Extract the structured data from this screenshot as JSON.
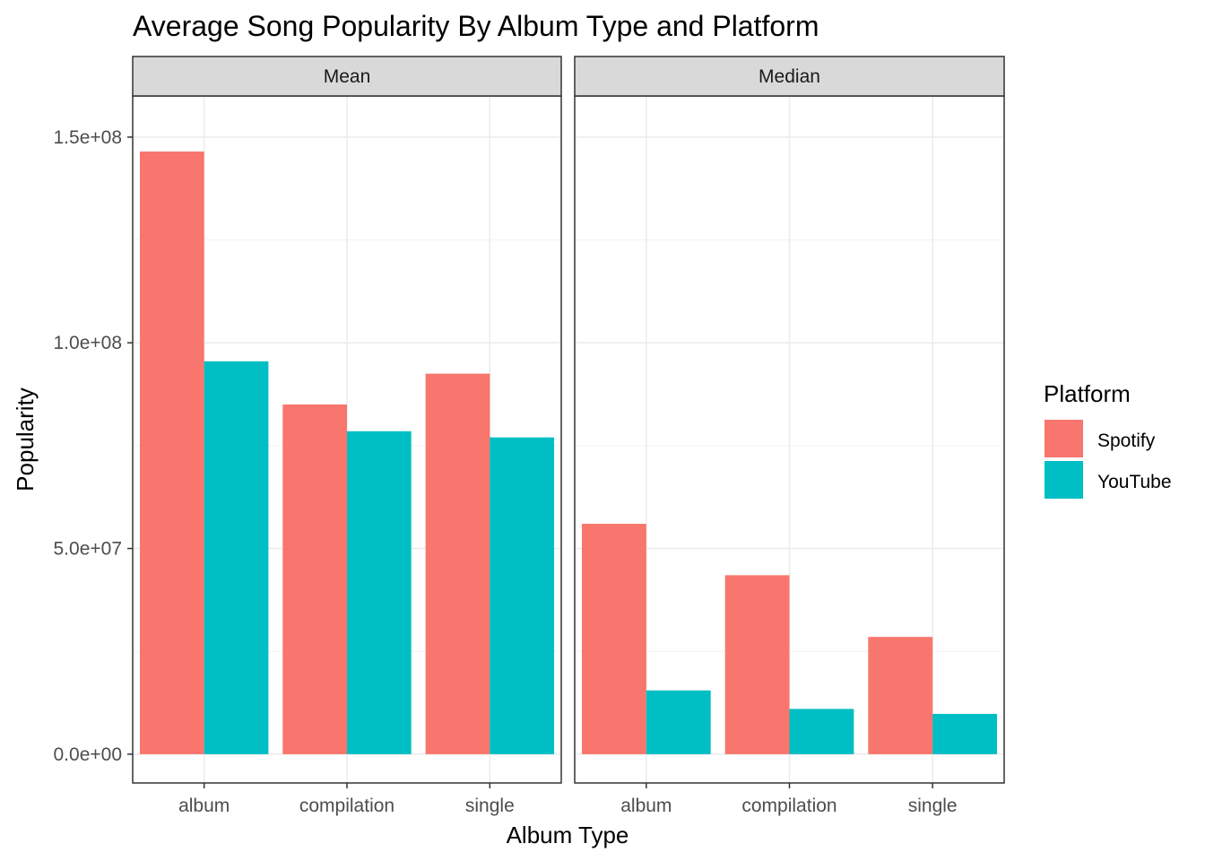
{
  "chart_data": {
    "type": "bar",
    "title": "Average Song Popularity By Album Type and Platform",
    "xlabel": "Album Type",
    "ylabel": "Popularity",
    "categories": [
      "album",
      "compilation",
      "single"
    ],
    "ylim": [
      -7000000,
      160000000
    ],
    "yticks": [
      0,
      50000000,
      100000000,
      150000000
    ],
    "ytick_labels": [
      "0.0e+00",
      "5.0e+07",
      "1.0e+08",
      "1.5e+08"
    ],
    "grid": true,
    "legend": {
      "title": "Platform",
      "position": "right"
    },
    "colors": {
      "Spotify": "#F8766D",
      "YouTube": "#00BFC4"
    },
    "panels": [
      {
        "name": "Mean",
        "series": [
          {
            "name": "Spotify",
            "values": [
              146500000,
              85000000,
              92500000
            ]
          },
          {
            "name": "YouTube",
            "values": [
              95500000,
              78500000,
              77000000
            ]
          }
        ]
      },
      {
        "name": "Median",
        "series": [
          {
            "name": "Spotify",
            "values": [
              56000000,
              43500000,
              28500000
            ]
          },
          {
            "name": "YouTube",
            "values": [
              15500000,
              11000000,
              9800000
            ]
          }
        ]
      }
    ]
  }
}
